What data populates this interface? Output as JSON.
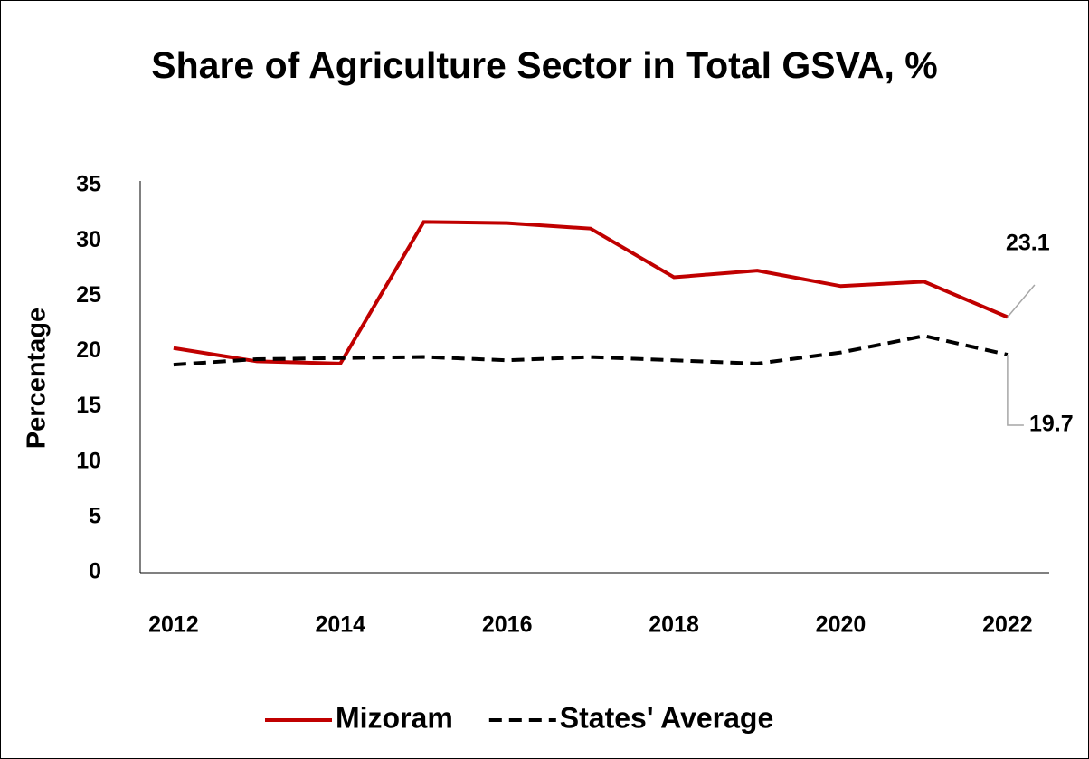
{
  "chart_data": {
    "type": "line",
    "title": "Share of Agriculture Sector in Total GSVA, %",
    "y_label": "Percentage",
    "x": [
      2012,
      2013,
      2014,
      2015,
      2016,
      2017,
      2018,
      2019,
      2020,
      2021,
      2022
    ],
    "series": [
      {
        "name": "Mizoram",
        "color": "#c00000",
        "dash": "solid",
        "values": [
          20.3,
          19.1,
          18.9,
          31.7,
          31.6,
          31.1,
          26.7,
          27.3,
          25.9,
          26.3,
          23.1
        ]
      },
      {
        "name": "States' Average",
        "color": "#000000",
        "dash": "dashed",
        "values": [
          18.8,
          19.3,
          19.4,
          19.5,
          19.2,
          19.5,
          19.2,
          18.9,
          19.9,
          21.4,
          19.7
        ]
      }
    ],
    "xlim": [
      2011.6,
      2022.5
    ],
    "xticks": [
      2012,
      2014,
      2016,
      2018,
      2020,
      2022
    ],
    "ylim": [
      0,
      35
    ],
    "yticks": [
      0,
      5,
      10,
      15,
      20,
      25,
      30,
      35
    ],
    "grid": false,
    "legend": "bottom"
  }
}
